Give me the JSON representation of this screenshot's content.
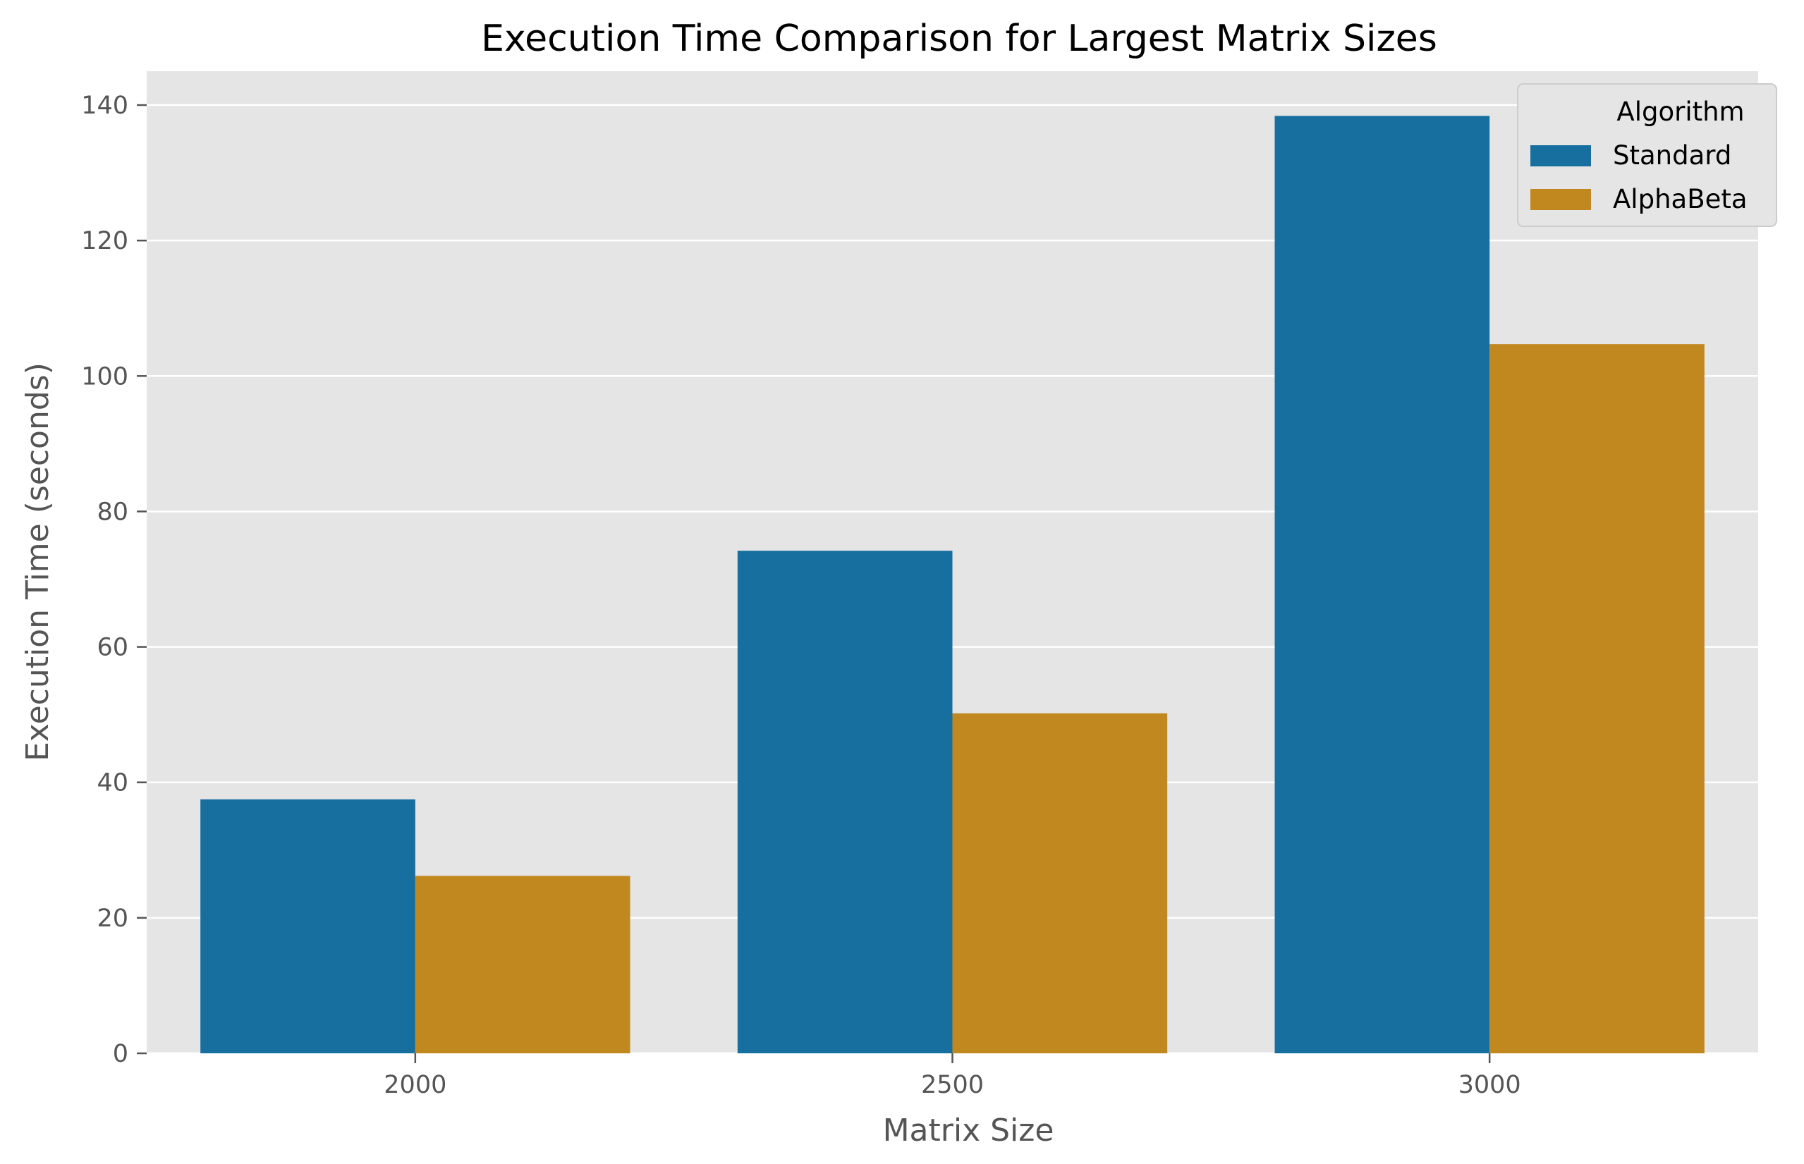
{
  "chart_data": {
    "type": "bar",
    "title": "Execution Time Comparison for Largest Matrix Sizes",
    "xlabel": "Matrix Size",
    "ylabel": "Execution Time (seconds)",
    "categories": [
      "2000",
      "2500",
      "3000"
    ],
    "series": [
      {
        "name": "Standard",
        "color": "#176fa0",
        "values": [
          37.5,
          74.2,
          138.4
        ]
      },
      {
        "name": "AlphaBeta",
        "color": "#c28820",
        "values": [
          26.2,
          50.2,
          104.7
        ]
      }
    ],
    "ylim": [
      0,
      145
    ],
    "yticks": [
      0,
      20,
      40,
      60,
      80,
      100,
      120,
      140
    ],
    "grid": true,
    "legend": {
      "title": "Algorithm",
      "placement": "top-right"
    },
    "colors": {
      "plot_background": "#e5e5e5",
      "grid": "#ffffff",
      "tick_text": "#555555"
    }
  }
}
